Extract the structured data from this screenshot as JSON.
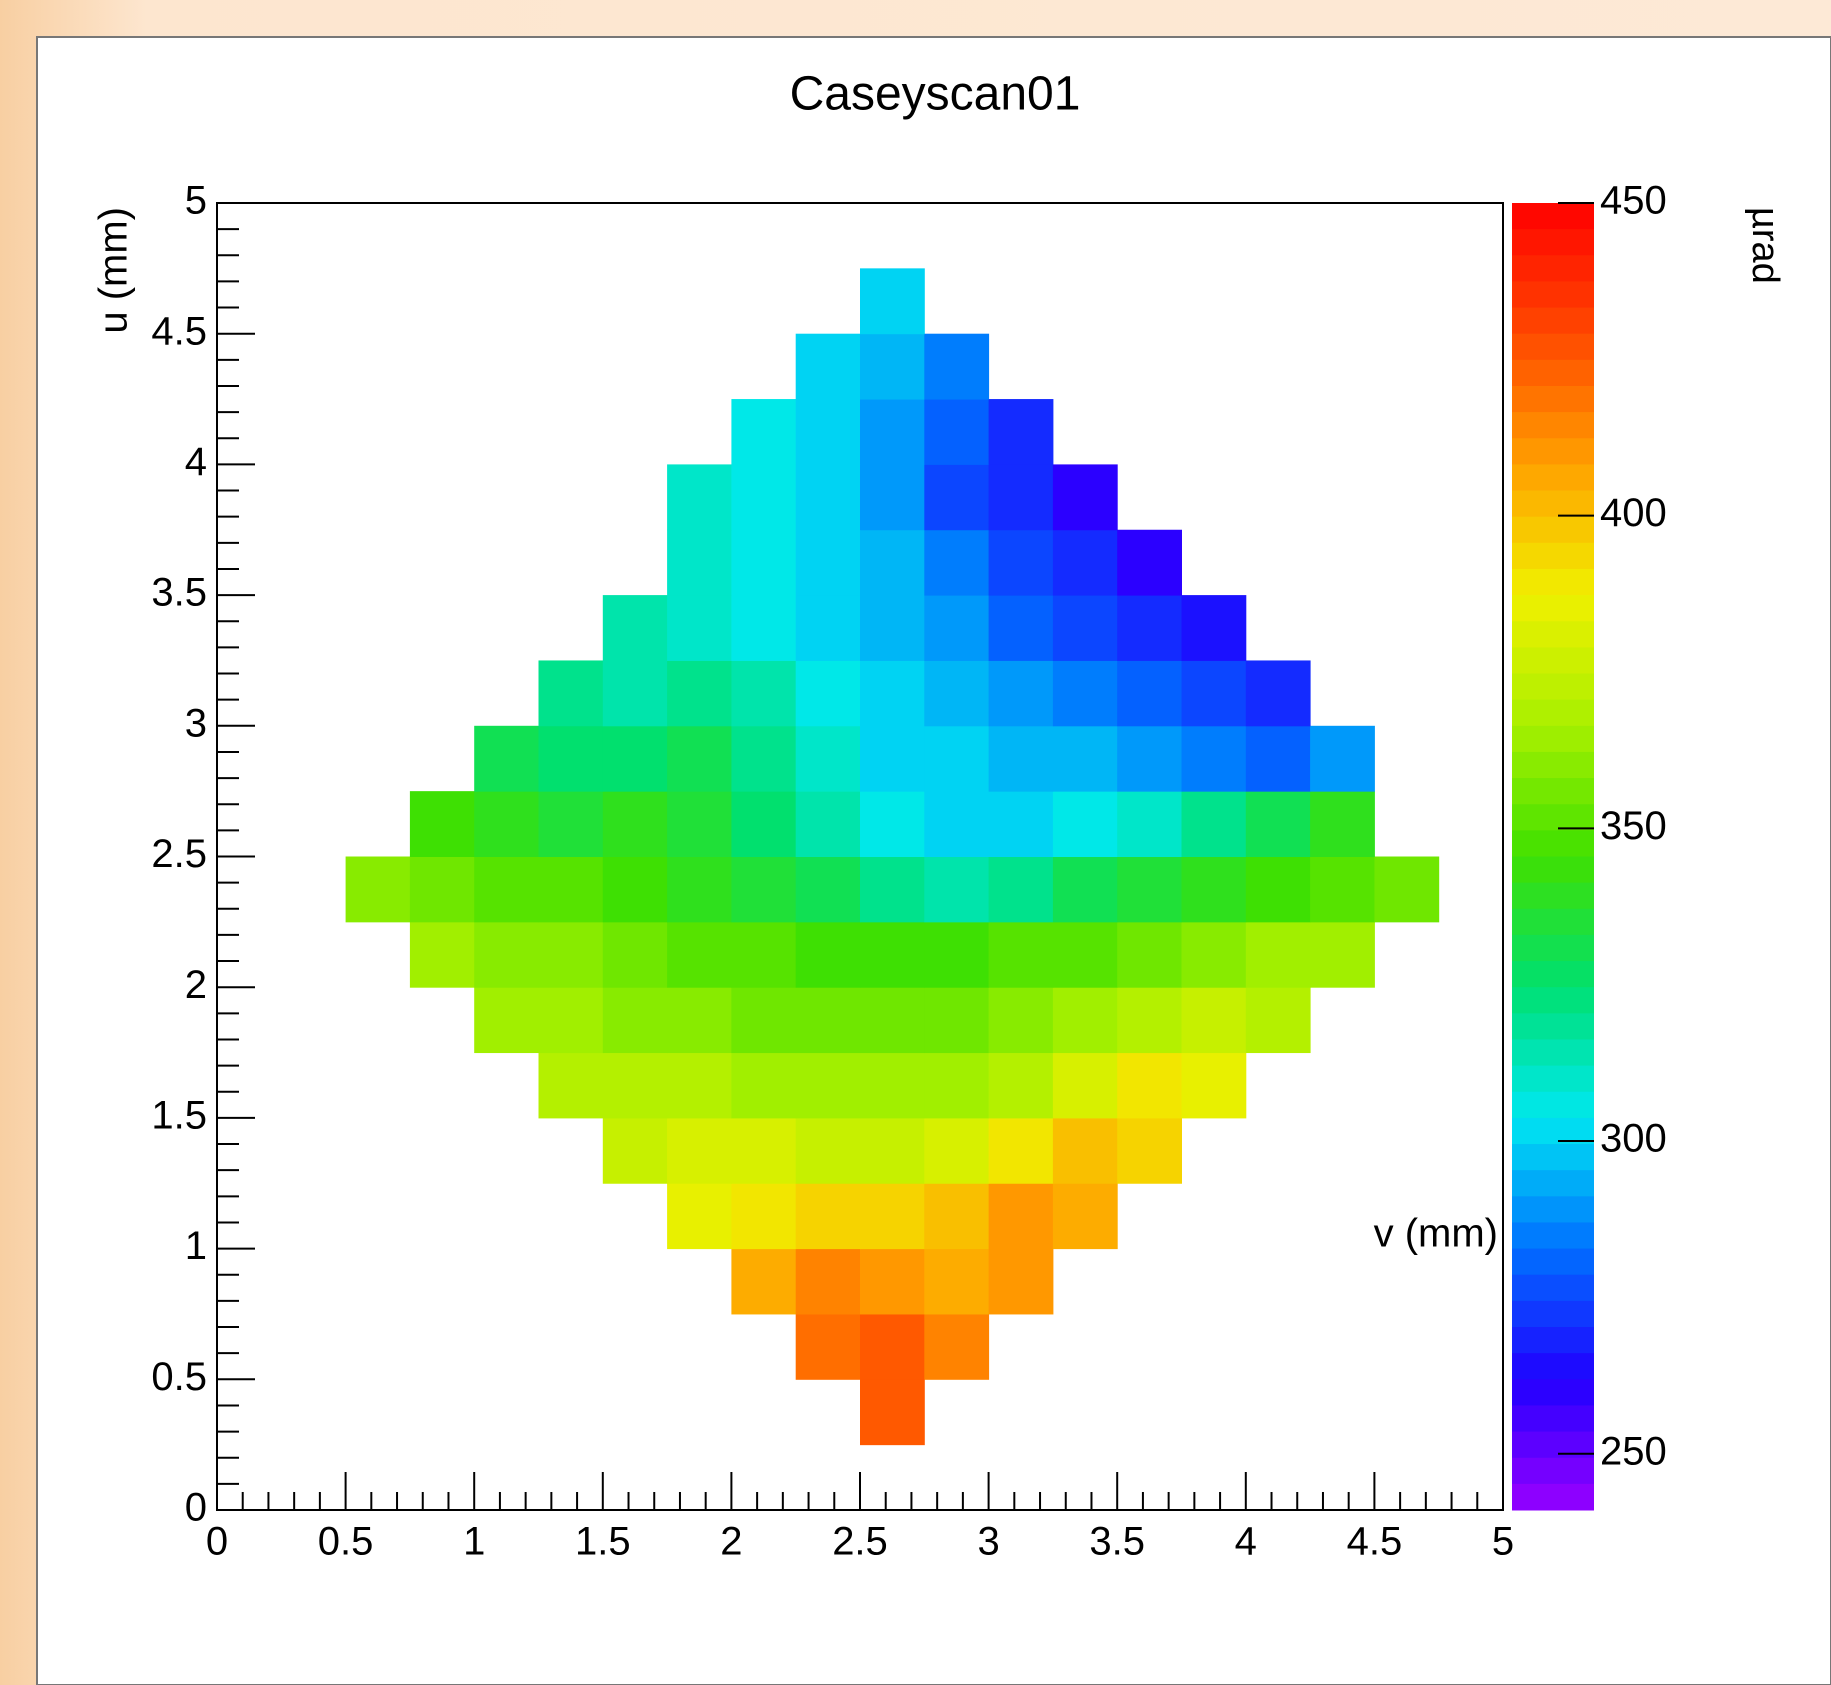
{
  "chart_data": {
    "type": "heatmap",
    "title": "Caseyscan01",
    "xlabel": "v (mm)",
    "ylabel": "u (mm)",
    "colorbar_label": "µrad",
    "xbins": [
      0,
      0.25,
      0.5,
      0.75,
      1,
      1.25,
      1.5,
      1.75,
      2,
      2.25,
      2.5,
      2.75,
      3,
      3.25,
      3.5,
      3.75,
      4,
      4.25,
      4.5,
      4.75,
      5
    ],
    "ybins": [
      0,
      0.25,
      0.5,
      0.75,
      1,
      1.25,
      1.5,
      1.75,
      2,
      2.25,
      2.5,
      2.75,
      3,
      3.25,
      3.5,
      3.75,
      4,
      4.25,
      4.5,
      4.75,
      5
    ],
    "values": [
      [
        null,
        null,
        null,
        null,
        null,
        null,
        null,
        null,
        null,
        null,
        null,
        null,
        null,
        null,
        null,
        null,
        null,
        null,
        null,
        null
      ],
      [
        null,
        null,
        null,
        null,
        null,
        null,
        null,
        null,
        null,
        null,
        425,
        null,
        null,
        null,
        null,
        null,
        null,
        null,
        null,
        null
      ],
      [
        null,
        null,
        null,
        null,
        null,
        null,
        null,
        null,
        null,
        420,
        425,
        415,
        null,
        null,
        null,
        null,
        null,
        null,
        null,
        null
      ],
      [
        null,
        null,
        null,
        null,
        null,
        null,
        null,
        null,
        405,
        415,
        410,
        405,
        410,
        null,
        null,
        null,
        null,
        null,
        null,
        null
      ],
      [
        null,
        null,
        null,
        null,
        null,
        null,
        null,
        385,
        390,
        395,
        395,
        400,
        410,
        405,
        null,
        null,
        null,
        null,
        null,
        null
      ],
      [
        null,
        null,
        null,
        null,
        null,
        null,
        375,
        380,
        380,
        375,
        375,
        380,
        390,
        400,
        395,
        null,
        null,
        null,
        null,
        null
      ],
      [
        null,
        null,
        null,
        null,
        null,
        370,
        370,
        370,
        365,
        365,
        365,
        365,
        370,
        380,
        390,
        385,
        null,
        null,
        null,
        null
      ],
      [
        null,
        null,
        null,
        null,
        365,
        365,
        360,
        360,
        355,
        355,
        355,
        355,
        360,
        365,
        370,
        375,
        370,
        null,
        null,
        null
      ],
      [
        null,
        null,
        null,
        365,
        360,
        360,
        355,
        350,
        350,
        345,
        345,
        345,
        350,
        350,
        355,
        360,
        365,
        365,
        null,
        null
      ],
      [
        null,
        null,
        360,
        355,
        350,
        350,
        345,
        340,
        335,
        330,
        320,
        315,
        320,
        330,
        335,
        340,
        345,
        350,
        355,
        null
      ],
      [
        null,
        null,
        null,
        345,
        340,
        335,
        340,
        335,
        325,
        315,
        305,
        300,
        300,
        305,
        310,
        320,
        330,
        340,
        null,
        null
      ],
      [
        null,
        null,
        null,
        null,
        330,
        325,
        325,
        330,
        320,
        310,
        300,
        300,
        295,
        295,
        290,
        285,
        280,
        290,
        null,
        null
      ],
      [
        null,
        null,
        null,
        null,
        null,
        320,
        315,
        320,
        315,
        305,
        300,
        295,
        290,
        285,
        280,
        275,
        270,
        null,
        null,
        null
      ],
      [
        null,
        null,
        null,
        null,
        null,
        null,
        315,
        310,
        305,
        300,
        295,
        290,
        280,
        275,
        270,
        265,
        null,
        null,
        null,
        null
      ],
      [
        null,
        null,
        null,
        null,
        null,
        null,
        null,
        310,
        305,
        300,
        295,
        285,
        275,
        270,
        260,
        null,
        null,
        null,
        null,
        null
      ],
      [
        null,
        null,
        null,
        null,
        null,
        null,
        null,
        310,
        305,
        300,
        290,
        275,
        270,
        260,
        null,
        null,
        null,
        null,
        null,
        null
      ],
      [
        null,
        null,
        null,
        null,
        null,
        null,
        null,
        null,
        305,
        300,
        290,
        280,
        270,
        null,
        null,
        null,
        null,
        null,
        null,
        null
      ],
      [
        null,
        null,
        null,
        null,
        null,
        null,
        null,
        null,
        null,
        300,
        295,
        285,
        null,
        null,
        null,
        null,
        null,
        null,
        null,
        null
      ],
      [
        null,
        null,
        null,
        null,
        null,
        null,
        null,
        null,
        null,
        null,
        300,
        null,
        null,
        null,
        null,
        null,
        null,
        null,
        null,
        null
      ],
      [
        null,
        null,
        null,
        null,
        null,
        null,
        null,
        null,
        null,
        null,
        null,
        null,
        null,
        null,
        null,
        null,
        null,
        null,
        null,
        null
      ]
    ],
    "xlim": [
      0,
      5
    ],
    "ylim": [
      0,
      5
    ],
    "zlim": [
      241,
      450
    ],
    "xticks": [
      0,
      0.5,
      1,
      1.5,
      2,
      2.5,
      3,
      3.5,
      4,
      4.5,
      5
    ],
    "yticks": [
      0,
      0.5,
      1,
      1.5,
      2,
      2.5,
      3,
      3.5,
      4,
      4.5,
      5
    ],
    "zticks": [
      250,
      300,
      350,
      400,
      450
    ],
    "colorscale": [
      "#9900ff",
      "#2000ff",
      "#0070ff",
      "#00e8f0",
      "#00e070",
      "#40e000",
      "#a8f000",
      "#f0f000",
      "#ffa000",
      "#ff4800",
      "#ff0000"
    ]
  }
}
